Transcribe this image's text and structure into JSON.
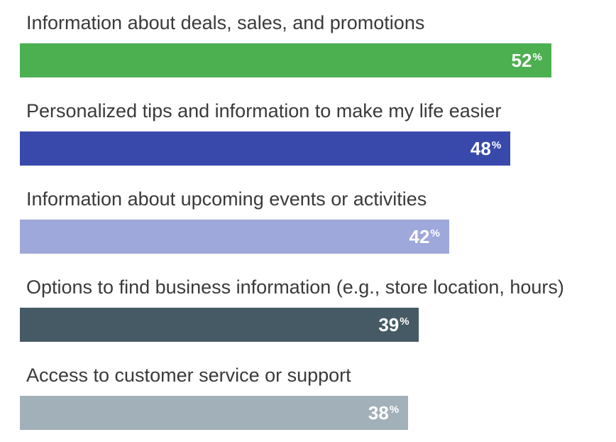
{
  "chart_data": {
    "type": "bar",
    "orientation": "horizontal",
    "categories": [
      "Information about deals, sales, and promotions",
      "Personalized tips and information to make my life easier",
      "Information about upcoming events or activities",
      "Options to find business information (e.g., store location, hours)",
      "Access to customer service or support"
    ],
    "values": [
      52,
      48,
      42,
      39,
      38
    ],
    "value_unit": "%",
    "colors": [
      "#4caf50",
      "#3949ab",
      "#9fa8da",
      "#455a64",
      "#a2b0b9"
    ],
    "xlim": [
      0,
      56
    ],
    "grid": false,
    "legend": "none"
  }
}
